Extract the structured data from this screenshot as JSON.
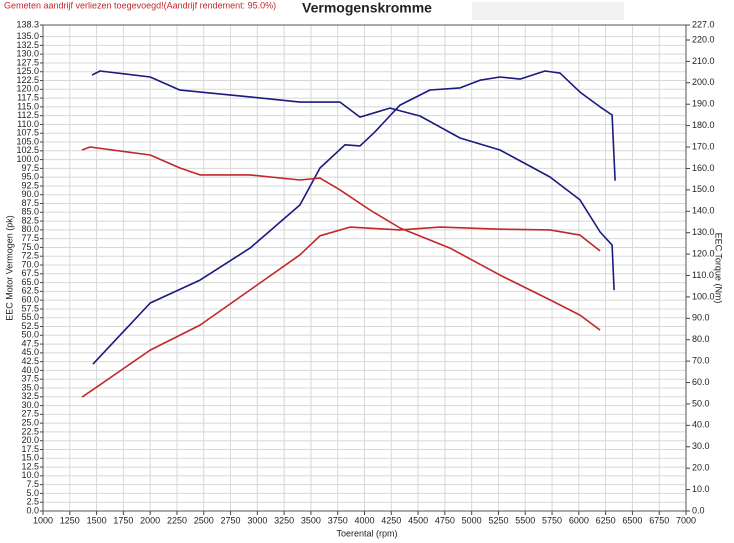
{
  "chart_data": {
    "type": "line",
    "title": "Vermogenskromme",
    "subtitle": "Gemeten aandrijf verliezen toegevoegd!(Aandrijf rendement: 95.0%)",
    "x_label": "Toerental (rpm)",
    "y_label": "EEC Motor Vermogen (pk)",
    "y2_label": "EEC Torque (Nm)",
    "xlim": [
      1000,
      7000
    ],
    "xticks": [
      1000,
      1250,
      1500,
      1750,
      2000,
      2250,
      2500,
      2750,
      3000,
      3250,
      3500,
      3750,
      4000,
      4250,
      4500,
      4750,
      5000,
      5250,
      5500,
      5750,
      6000,
      6250,
      6500,
      6750,
      7000
    ],
    "ylim": [
      0,
      138.3
    ],
    "yticks": [
      {
        "value": 0,
        "label": "0.0"
      },
      2.5,
      {
        "value": 5,
        "label": "5.0"
      },
      7.5,
      {
        "value": 10,
        "label": "10.0"
      },
      12.5,
      {
        "value": 15,
        "label": "15.0"
      },
      17.5,
      {
        "value": 20,
        "label": "20.0"
      },
      22.5,
      {
        "value": 25,
        "label": "25.0"
      },
      27.5,
      {
        "value": 30,
        "label": "30.0"
      },
      32.5,
      {
        "value": 35,
        "label": "35.0"
      },
      37.5,
      {
        "value": 40,
        "label": "40.0"
      },
      42.5,
      {
        "value": 45,
        "label": "45.0"
      },
      47.5,
      {
        "value": 50,
        "label": "50.0"
      },
      52.5,
      {
        "value": 55,
        "label": "55.0"
      },
      57.5,
      {
        "value": 60,
        "label": "60.0"
      },
      62.5,
      {
        "value": 65,
        "label": "65.0"
      },
      67.5,
      {
        "value": 70,
        "label": "70.0"
      },
      72.5,
      {
        "value": 75,
        "label": "75.0"
      },
      77.5,
      {
        "value": 80,
        "label": "80.0"
      },
      82.5,
      {
        "value": 85,
        "label": "85.0"
      },
      87.5,
      {
        "value": 90,
        "label": "90.0"
      },
      92.5,
      {
        "value": 95,
        "label": "95.0"
      },
      97.5,
      {
        "value": 100,
        "label": "100.0"
      },
      102.5,
      {
        "value": 105,
        "label": "105.0"
      },
      107.5,
      {
        "value": 110,
        "label": "110.0"
      },
      112.5,
      {
        "value": 115,
        "label": "115.0"
      },
      117.5,
      {
        "value": 120,
        "label": "120.0"
      },
      122.5,
      {
        "value": 125,
        "label": "125.0"
      },
      127.5,
      {
        "value": 130,
        "label": "130.0"
      },
      132.5,
      {
        "value": 135,
        "label": "135.0"
      },
      138.3
    ],
    "y2lim": [
      0,
      227
    ],
    "y2ticks": [
      {
        "value": 0,
        "label": "0.0"
      },
      {
        "value": 10,
        "label": "10.0"
      },
      {
        "value": 20,
        "label": "20.0"
      },
      {
        "value": 30,
        "label": "30.0"
      },
      {
        "value": 40,
        "label": "40.0"
      },
      {
        "value": 50,
        "label": "50.0"
      },
      {
        "value": 60,
        "label": "60.0"
      },
      {
        "value": 70,
        "label": "70.0"
      },
      {
        "value": 80,
        "label": "80.0"
      },
      {
        "value": 90,
        "label": "90.0"
      },
      {
        "value": 100,
        "label": "100.0"
      },
      {
        "value": 110,
        "label": "110.0"
      },
      {
        "value": 120,
        "label": "120.0"
      },
      {
        "value": 130,
        "label": "130.0"
      },
      {
        "value": 140,
        "label": "140.0"
      },
      {
        "value": 150,
        "label": "150.0"
      },
      {
        "value": 160,
        "label": "160.0"
      },
      {
        "value": 170,
        "label": "170.0"
      },
      {
        "value": 180,
        "label": "180.0"
      },
      {
        "value": 190,
        "label": "190.0"
      },
      {
        "value": 200,
        "label": "200.0"
      },
      {
        "value": 210,
        "label": "210.0"
      },
      {
        "value": 220,
        "label": "220.0"
      },
      {
        "value": 227,
        "label": "227.0"
      }
    ],
    "grid": true,
    "series": [
      {
        "color": "#1a1a80",
        "x": [
          1467,
          2000,
          2465,
          2932,
          3398,
          3585,
          3818,
          3958,
          4098,
          4331,
          4611,
          4891,
          5078,
          5264,
          5451,
          5684,
          5824,
          6011,
          6198,
          6310,
          6338
        ],
        "values": [
          41.8,
          59.2,
          65.7,
          74.8,
          87.1,
          97.6,
          104.2,
          103.9,
          107.9,
          115.5,
          119.8,
          120.4,
          122.6,
          123.5,
          122.9,
          125.2,
          124.6,
          119.2,
          115,
          112.7,
          94
        ]
      },
      {
        "color": "#1a1a80",
        "axis": "y2",
        "x": [
          1457,
          1532,
          2000,
          2278,
          2932,
          3398,
          3771,
          3958,
          4238,
          4518,
          4891,
          5264,
          5731,
          6011,
          6198,
          6310,
          6329
        ],
        "values": [
          203.6,
          205.5,
          202.7,
          196.6,
          193.4,
          191,
          191,
          184,
          188.2,
          184.5,
          174.2,
          168.6,
          156,
          145.3,
          130.3,
          124.2,
          103.2
        ]
      },
      {
        "color": "#c0282a",
        "x": [
          1364,
          1532,
          2000,
          2465,
          2932,
          3398,
          3585,
          3865,
          4331,
          4705,
          5264,
          5731,
          6011,
          6198
        ],
        "values": [
          32.4,
          35.9,
          45.8,
          52.9,
          62.9,
          72.9,
          78.3,
          80.8,
          80,
          80.8,
          80.2,
          80,
          78.5,
          74
        ]
      },
      {
        "color": "#c0282a",
        "axis": "y2",
        "x": [
          1364,
          1439,
          2000,
          2278,
          2465,
          2932,
          3398,
          3585,
          3771,
          4051,
          4331,
          4798,
          5264,
          5731,
          6011,
          6198
        ],
        "values": [
          168.6,
          170,
          166.3,
          160.2,
          157,
          157,
          154.6,
          155.5,
          150,
          140.6,
          132.2,
          122.8,
          110.2,
          98.6,
          91.5,
          84.5
        ]
      }
    ]
  }
}
